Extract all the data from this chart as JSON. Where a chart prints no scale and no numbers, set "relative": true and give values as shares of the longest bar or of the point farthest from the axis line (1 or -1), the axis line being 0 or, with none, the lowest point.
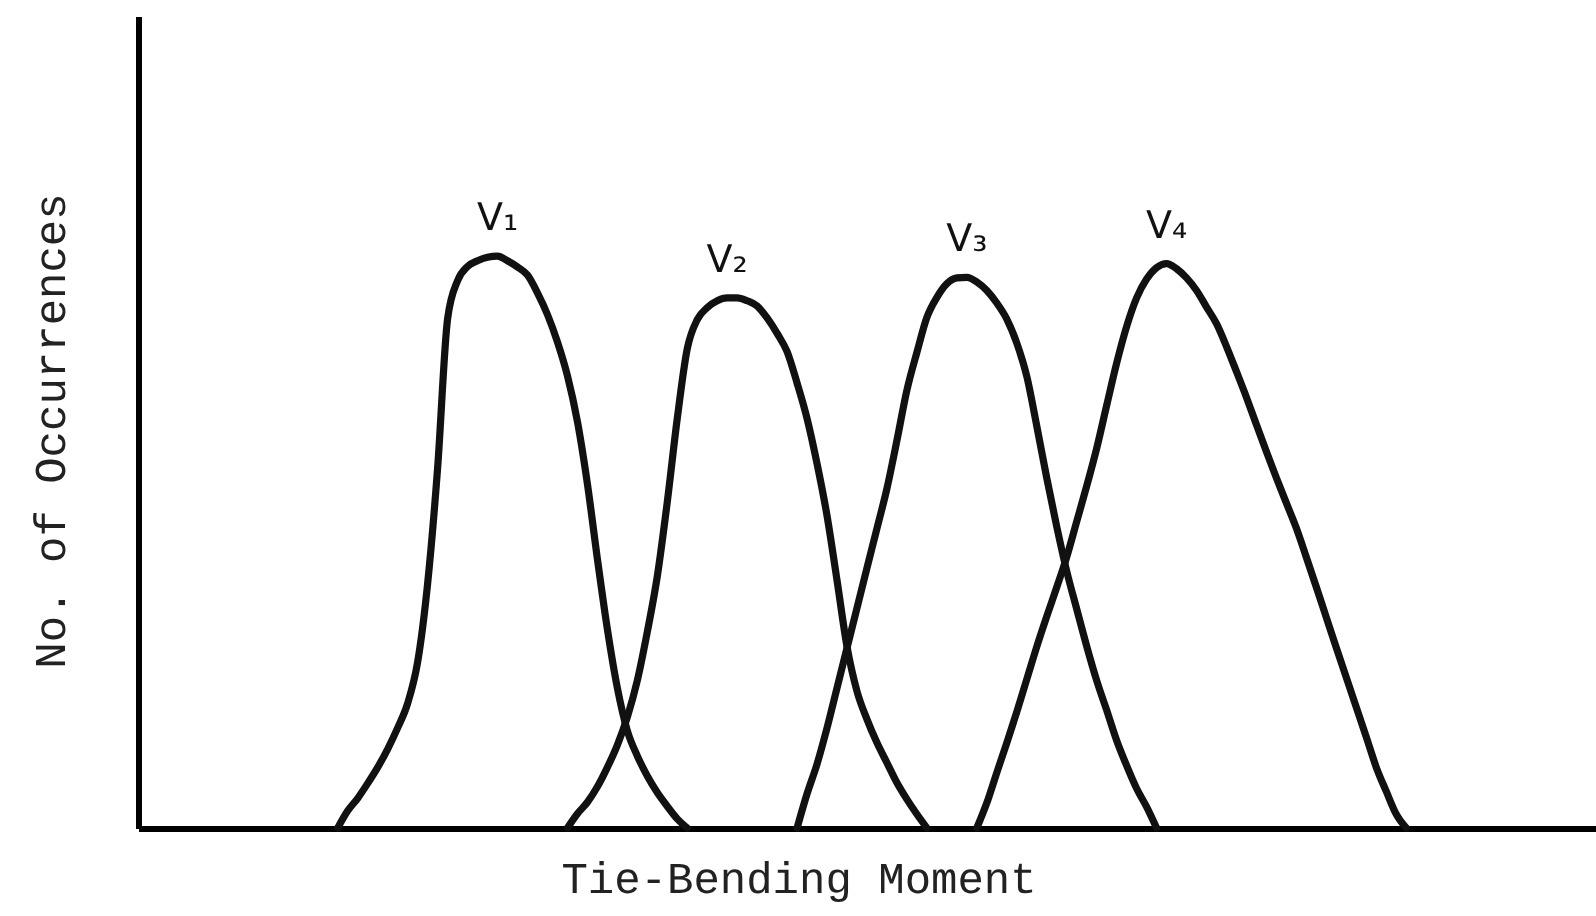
{
  "chart_data": {
    "type": "line",
    "relative": true,
    "xlabel": "Tie-Bending Moment",
    "ylabel": "No. of Occurrences",
    "line_style": "solid",
    "categories": [
      null,
      null,
      null,
      null,
      null,
      null,
      null,
      null,
      null,
      null,
      null,
      null,
      null,
      null,
      null,
      null,
      null,
      null,
      null,
      null,
      null,
      null,
      null,
      null,
      null,
      null,
      null,
      null,
      null,
      null,
      null,
      null,
      null,
      null,
      null,
      null,
      null,
      null,
      null,
      null,
      null,
      null,
      null,
      null,
      null,
      null,
      null,
      null,
      null,
      null,
      null,
      null,
      null,
      null,
      null,
      null,
      null,
      null,
      null,
      null,
      null,
      null,
      null,
      null,
      null,
      null,
      null,
      null,
      null,
      null,
      null,
      null,
      null,
      null,
      null,
      null,
      null,
      null,
      null,
      null,
      null,
      null,
      null,
      null,
      null,
      null,
      null,
      null,
      null,
      null,
      null,
      null,
      null,
      null,
      null,
      null,
      null,
      null,
      null,
      null,
      null,
      null,
      null,
      null,
      null,
      null,
      null,
      null,
      null,
      null,
      null,
      null,
      null,
      null,
      null,
      null,
      null,
      null,
      null,
      null,
      null,
      null,
      null,
      null,
      null,
      null,
      null,
      null,
      null,
      null,
      null,
      null,
      null,
      null,
      null,
      null,
      null,
      null,
      null,
      null,
      null,
      null,
      null,
      null,
      null,
      null,
      null
    ],
    "series": [
      {
        "name": "V₁",
        "color": "#111111",
        "values": [
          null,
          null,
          null,
          null,
          null,
          null,
          null,
          null,
          null,
          null,
          null,
          null,
          null,
          null,
          null,
          null,
          null,
          null,
          null,
          null,
          0,
          0.03,
          0.052,
          0.078,
          0.106,
          0.138,
          0.175,
          0.218,
          0.29,
          0.427,
          0.629,
          0.89,
          0.957,
          0.982,
          0.992,
          0.998,
          1,
          0.992,
          0.981,
          0.967,
          0.936,
          0.898,
          0.85,
          0.791,
          0.711,
          0.602,
          0.471,
          0.348,
          0.245,
          0.17,
          0.126,
          0.091,
          0.062,
          0.038,
          0.016,
          0,
          null,
          null,
          null,
          null,
          null,
          null,
          null,
          null,
          null,
          null,
          null,
          null,
          null,
          null,
          null,
          null,
          null,
          null,
          null,
          null,
          null,
          null,
          null,
          null,
          null,
          null,
          null,
          null,
          null,
          null,
          null,
          null,
          null,
          null,
          null,
          null,
          null,
          null,
          null,
          null,
          null,
          null,
          null,
          null,
          null,
          null,
          null,
          null,
          null,
          null,
          null,
          null,
          null,
          null,
          null,
          null,
          null,
          null,
          null,
          null,
          null,
          null,
          null,
          null,
          null,
          null,
          null,
          null,
          null,
          null,
          null,
          null,
          null,
          null,
          null,
          null,
          null,
          null,
          null,
          null,
          null,
          null,
          null,
          null,
          null,
          null,
          null,
          null,
          null,
          null,
          null
        ]
      },
      {
        "name": "V₂",
        "color": "#111111",
        "values": [
          null,
          null,
          null,
          null,
          null,
          null,
          null,
          null,
          null,
          null,
          null,
          null,
          null,
          null,
          null,
          null,
          null,
          null,
          null,
          null,
          null,
          null,
          null,
          null,
          null,
          null,
          null,
          null,
          null,
          null,
          null,
          null,
          null,
          null,
          null,
          null,
          null,
          null,
          null,
          null,
          null,
          null,
          null,
          0,
          0.025,
          0.045,
          0.072,
          0.106,
          0.145,
          0.194,
          0.258,
          0.343,
          0.44,
          0.57,
          0.716,
          0.838,
          0.889,
          0.91,
          0.922,
          0.927,
          0.927,
          0.922,
          0.913,
          0.892,
          0.865,
          0.833,
          0.778,
          0.716,
          0.637,
          0.546,
          0.433,
          0.317,
          0.239,
          0.19,
          0.149,
          0.114,
          0.079,
          0.05,
          0.024,
          0,
          null,
          null,
          null,
          null,
          null,
          null,
          null,
          null,
          null,
          null,
          null,
          null,
          null,
          null,
          null,
          null,
          null,
          null,
          null,
          null,
          null,
          null,
          null,
          null,
          null,
          null,
          null,
          null,
          null,
          null,
          null,
          null,
          null,
          null,
          null,
          null,
          null,
          null,
          null,
          null,
          null,
          null,
          null,
          null,
          null,
          null,
          null,
          null,
          null,
          null,
          null,
          null,
          null,
          null,
          null,
          null,
          null,
          null,
          null,
          null,
          null,
          null,
          null,
          null,
          null,
          null,
          null
        ]
      },
      {
        "name": "V₃",
        "color": "#111111",
        "values": [
          null,
          null,
          null,
          null,
          null,
          null,
          null,
          null,
          null,
          null,
          null,
          null,
          null,
          null,
          null,
          null,
          null,
          null,
          null,
          null,
          null,
          null,
          null,
          null,
          null,
          null,
          null,
          null,
          null,
          null,
          null,
          null,
          null,
          null,
          null,
          null,
          null,
          null,
          null,
          null,
          null,
          null,
          null,
          null,
          null,
          null,
          null,
          null,
          null,
          null,
          null,
          null,
          null,
          null,
          null,
          null,
          null,
          null,
          null,
          null,
          null,
          null,
          null,
          null,
          null,
          null,
          0,
          0.06,
          0.112,
          0.175,
          0.245,
          0.315,
          0.385,
          0.455,
          0.524,
          0.594,
          0.678,
          0.766,
          0.832,
          0.893,
          0.928,
          0.952,
          0.962,
          0.963,
          0.955,
          0.94,
          0.918,
          0.89,
          0.848,
          0.79,
          0.703,
          0.612,
          0.527,
          0.449,
          0.383,
          0.318,
          0.258,
          0.206,
          0.153,
          0.109,
          0.069,
          0.037,
          0,
          null,
          null,
          null,
          null,
          null,
          null,
          null,
          null,
          null,
          null,
          null,
          null,
          null,
          null,
          null,
          null,
          null,
          null,
          null,
          null,
          null,
          null,
          null,
          null,
          null,
          null,
          null,
          null,
          null,
          null,
          null,
          null,
          null,
          null,
          null,
          null,
          null,
          null,
          null,
          null,
          null,
          null,
          null,
          null
        ]
      },
      {
        "name": "V₄",
        "color": "#111111",
        "values": [
          null,
          null,
          null,
          null,
          null,
          null,
          null,
          null,
          null,
          null,
          null,
          null,
          null,
          null,
          null,
          null,
          null,
          null,
          null,
          null,
          null,
          null,
          null,
          null,
          null,
          null,
          null,
          null,
          null,
          null,
          null,
          null,
          null,
          null,
          null,
          null,
          null,
          null,
          null,
          null,
          null,
          null,
          null,
          null,
          null,
          null,
          null,
          null,
          null,
          null,
          null,
          null,
          null,
          null,
          null,
          null,
          null,
          null,
          null,
          null,
          null,
          null,
          null,
          null,
          null,
          null,
          null,
          null,
          null,
          null,
          null,
          null,
          null,
          null,
          null,
          null,
          null,
          null,
          null,
          null,
          null,
          null,
          null,
          null,
          0,
          0.044,
          0.097,
          0.149,
          0.203,
          0.26,
          0.317,
          0.37,
          0.421,
          0.474,
          0.536,
          0.598,
          0.664,
          0.739,
          0.813,
          0.877,
          0.927,
          0.96,
          0.98,
          0.987,
          0.978,
          0.962,
          0.94,
          0.911,
          0.882,
          0.842,
          0.798,
          0.753,
          0.705,
          0.658,
          0.612,
          0.568,
          0.524,
          0.473,
          0.421,
          0.368,
          0.315,
          0.263,
          0.211,
          0.159,
          0.106,
          0.064,
          0.024,
          0,
          null,
          null,
          null,
          null,
          null,
          null,
          null,
          null,
          null,
          null,
          null,
          null,
          null,
          null,
          null,
          null,
          null,
          null,
          null
        ]
      }
    ]
  }
}
